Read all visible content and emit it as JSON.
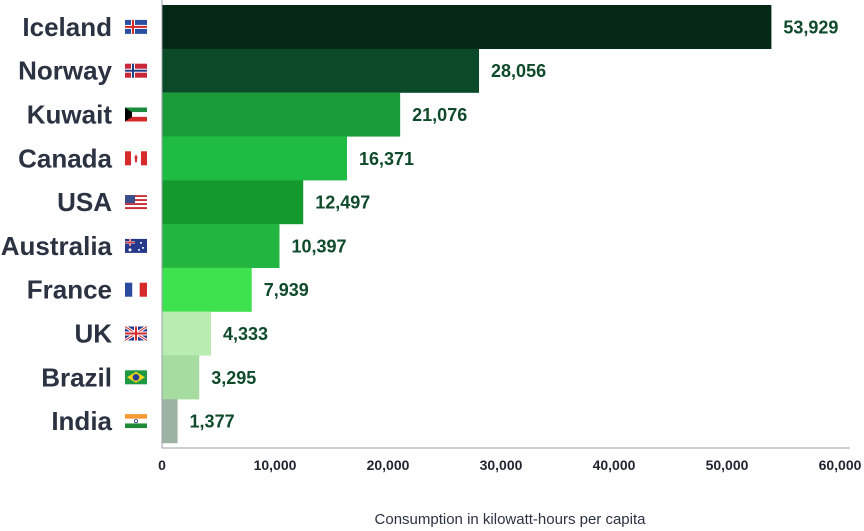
{
  "chart_data": {
    "type": "bar",
    "orientation": "horizontal",
    "categories": [
      "Iceland",
      "Norway",
      "Kuwait",
      "Canada",
      "USA",
      "Australia",
      "France",
      "UK",
      "Brazil",
      "India"
    ],
    "values": [
      53929,
      28056,
      21076,
      16371,
      12497,
      10397,
      7939,
      4333,
      3295,
      1377
    ],
    "value_labels": [
      "53,929",
      "28,056",
      "21,076",
      "16,371",
      "12,497",
      "10,397",
      "7,939",
      "4,333",
      "3,295",
      "1,377"
    ],
    "flags": [
      "iceland-flag",
      "norway-flag",
      "kuwait-flag",
      "canada-flag",
      "usa-flag",
      "australia-flag",
      "france-flag",
      "uk-flag",
      "brazil-flag",
      "india-flag"
    ],
    "bar_colors": [
      "#042816",
      "#0a4a28",
      "#1a9c3a",
      "#1fbc44",
      "#14992f",
      "#22b540",
      "#3ee24f",
      "#b8ecb0",
      "#a6dca0",
      "#9cb3a3"
    ],
    "xlim": [
      0,
      60000
    ],
    "xticks": [
      0,
      10000,
      20000,
      30000,
      40000,
      50000,
      60000
    ],
    "xtick_labels": [
      "0",
      "10,000",
      "20,000",
      "30,000",
      "40,000",
      "50,000",
      "60,000"
    ],
    "xlabel": "Consumption in kilowatt-hours per capita",
    "ylabel": "",
    "title": "",
    "grid": false
  }
}
